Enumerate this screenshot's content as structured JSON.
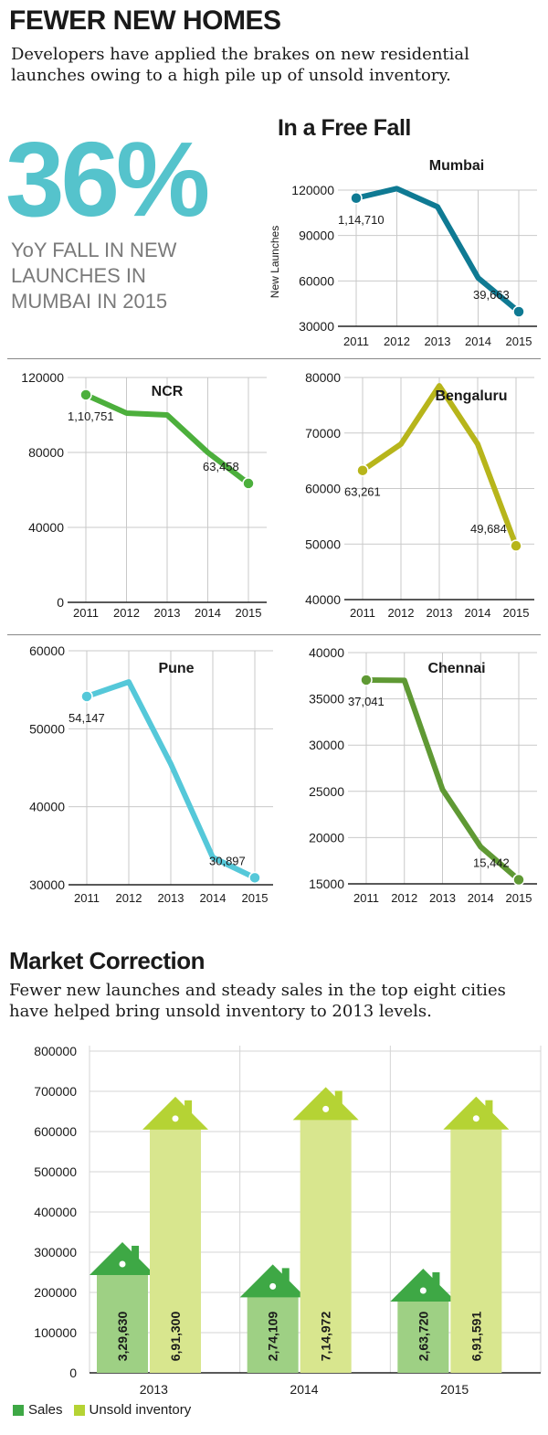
{
  "header": {
    "headline": "FEWER NEW HOMES",
    "dek": "Developers have applied the brakes on new residential launches owing to a high pile up of unsold inventory."
  },
  "highlight": {
    "figure": "36%",
    "caption": "YoY FALL IN NEW LAUNCHES IN MUMBAI IN 2015"
  },
  "free_fall": {
    "title": "In a Free Fall"
  },
  "market": {
    "title": "Market Correction",
    "dek": "Fewer new launches and steady sales in the top eight cities have helped bring unsold inventory to 2013 levels."
  },
  "colors": {
    "mumbai": "#0f7a93",
    "ncr": "#4caf3c",
    "bengaluru": "#b7b51b",
    "pune": "#55c8d9",
    "chennai": "#5f9934",
    "sales": "#9ed084",
    "sales_house": "#3ea845",
    "unsold": "#d8e68e",
    "unsold_house": "#b5d334",
    "grid": "#c9c9c9"
  },
  "chart_data": [
    {
      "type": "line",
      "city": "Mumbai",
      "title": "Mumbai",
      "ylabel": "New Launches",
      "x": [
        "2011",
        "2012",
        "2013",
        "2014",
        "2015"
      ],
      "values": [
        114710,
        121000,
        109000,
        62000,
        39663
      ],
      "ylim": [
        30000,
        120000
      ],
      "yticks": [
        "30000",
        "60000",
        "90000",
        "120000"
      ],
      "labels": [
        {
          "index": 0,
          "text": "1,14,710"
        },
        {
          "index": 4,
          "text": "39,663"
        }
      ]
    },
    {
      "type": "line",
      "city": "NCR",
      "title": "NCR",
      "ylabel": "",
      "x": [
        "2011",
        "2012",
        "2013",
        "2014",
        "2015"
      ],
      "values": [
        110751,
        101000,
        100000,
        80000,
        63458
      ],
      "ylim": [
        0,
        120000
      ],
      "yticks": [
        "0",
        "40000",
        "80000",
        "120000"
      ],
      "labels": [
        {
          "index": 0,
          "text": "1,10,751"
        },
        {
          "index": 4,
          "text": "63,458"
        }
      ]
    },
    {
      "type": "line",
      "city": "Bengaluru",
      "title": "Bengaluru",
      "ylabel": "",
      "x": [
        "2011",
        "2012",
        "2013",
        "2014",
        "2015"
      ],
      "values": [
        63261,
        68000,
        78500,
        68000,
        49684
      ],
      "ylim": [
        40000,
        80000
      ],
      "yticks": [
        "40000",
        "50000",
        "60000",
        "70000",
        "80000"
      ],
      "labels": [
        {
          "index": 0,
          "text": "63,261"
        },
        {
          "index": 4,
          "text": "49,684"
        }
      ]
    },
    {
      "type": "line",
      "city": "Pune",
      "title": "Pune",
      "ylabel": "",
      "x": [
        "2011",
        "2012",
        "2013",
        "2014",
        "2015"
      ],
      "values": [
        54147,
        56000,
        45500,
        33500,
        30897
      ],
      "ylim": [
        30000,
        60000
      ],
      "yticks": [
        "30000",
        "40000",
        "50000",
        "60000"
      ],
      "labels": [
        {
          "index": 0,
          "text": "54,147"
        },
        {
          "index": 4,
          "text": "30,897"
        }
      ]
    },
    {
      "type": "line",
      "city": "Chennai",
      "title": "Chennai",
      "ylabel": "",
      "x": [
        "2011",
        "2012",
        "2013",
        "2014",
        "2015"
      ],
      "values": [
        37041,
        37000,
        25200,
        19000,
        15442
      ],
      "ylim": [
        15000,
        40000
      ],
      "yticks": [
        "15000",
        "20000",
        "25000",
        "30000",
        "35000",
        "40000"
      ],
      "labels": [
        {
          "index": 0,
          "text": "37,041"
        },
        {
          "index": 4,
          "text": "15,442"
        }
      ]
    },
    {
      "type": "bar",
      "title": "Market Correction",
      "categories": [
        "2013",
        "2014",
        "2015"
      ],
      "series": [
        {
          "name": "Sales",
          "values": [
            329630,
            274109,
            263720
          ],
          "labels": [
            "3,29,630",
            "2,74,109",
            "2,63,720"
          ]
        },
        {
          "name": "Unsold inventory",
          "values": [
            691300,
            714972,
            691591
          ],
          "labels": [
            "6,91,300",
            "7,14,972",
            "6,91,591"
          ]
        }
      ],
      "ylim": [
        0,
        800000
      ],
      "yticks": [
        "0",
        "100000",
        "200000",
        "300000",
        "400000",
        "500000",
        "600000",
        "700000",
        "800000"
      ],
      "legend": [
        "Sales",
        "Unsold inventory"
      ]
    }
  ]
}
